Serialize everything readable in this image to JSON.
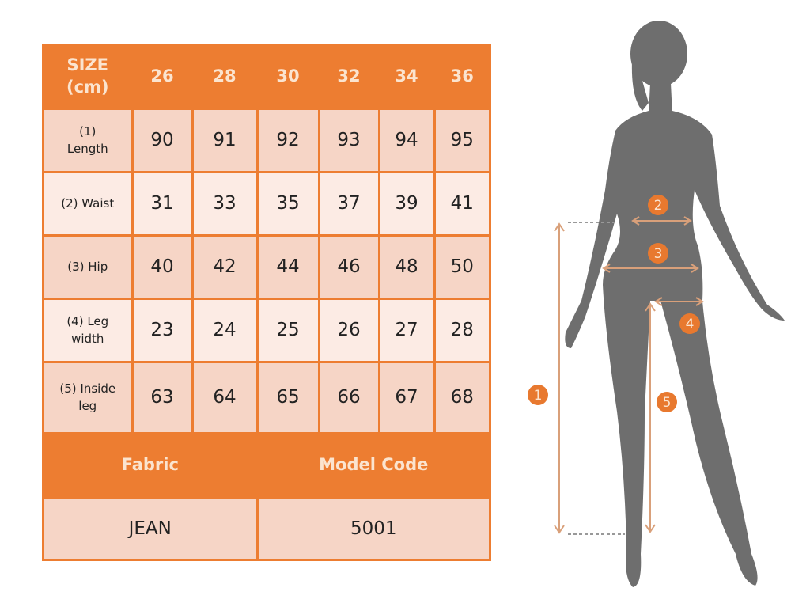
{
  "table": {
    "header_label": "SIZE\n(cm)",
    "sizes": [
      "26",
      "28",
      "30",
      "32",
      "34",
      "36"
    ],
    "rows": [
      {
        "label": "(1)\nLength",
        "values": [
          "90",
          "91",
          "92",
          "93",
          "94",
          "95"
        ]
      },
      {
        "label": "(2) Waist",
        "values": [
          "31",
          "33",
          "35",
          "37",
          "39",
          "41"
        ]
      },
      {
        "label": "(3) Hip",
        "values": [
          "40",
          "42",
          "44",
          "46",
          "48",
          "50"
        ]
      },
      {
        "label": "(4) Leg\nwidth",
        "values": [
          "23",
          "24",
          "25",
          "26",
          "27",
          "28"
        ]
      },
      {
        "label": "(5) Inside\nleg",
        "values": [
          "63",
          "64",
          "65",
          "66",
          "67",
          "68"
        ]
      }
    ],
    "footer_headers": [
      "Fabric",
      "Model Code"
    ],
    "footer_values": [
      "JEAN",
      "5001"
    ]
  },
  "figure": {
    "markers": [
      "1",
      "2",
      "3",
      "4",
      "5"
    ],
    "colors": {
      "silhouette": "#6e6e6e",
      "marker": "#e8792f",
      "arrow": "#d9a07a",
      "table_border": "#ed7d31"
    }
  }
}
